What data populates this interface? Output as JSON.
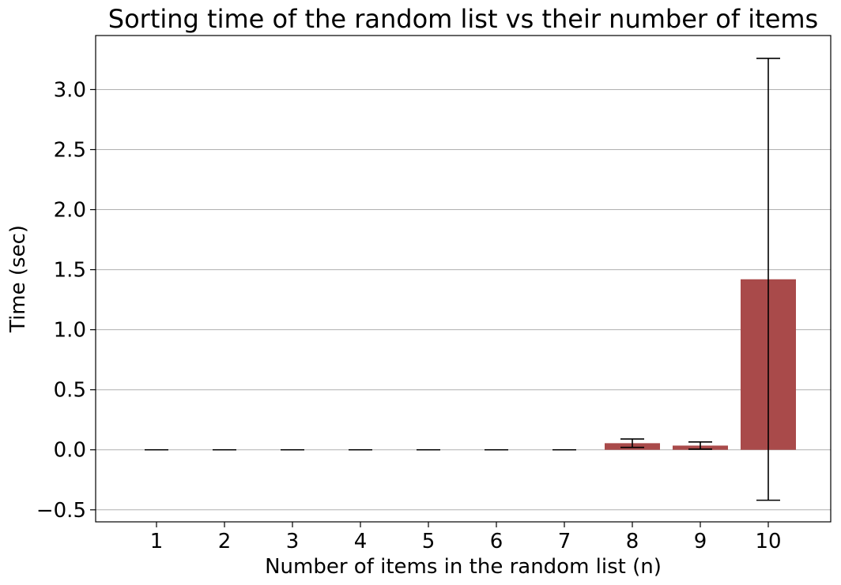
{
  "colors": {
    "bar": "#a94a4a",
    "error_bar": "#000000",
    "grid": "#b0b0b0"
  },
  "chart_data": {
    "type": "bar",
    "title": "Sorting time of the random list vs their number of items",
    "xlabel": "Number of items in the random list (n)",
    "ylabel": "Time (sec)",
    "categories": [
      "1",
      "2",
      "3",
      "4",
      "5",
      "6",
      "7",
      "8",
      "9",
      "10"
    ],
    "values": [
      0.0,
      0.0,
      0.0,
      0.0,
      0.0,
      0.0,
      0.0,
      0.055,
      0.035,
      1.42
    ],
    "error": [
      0.0,
      0.0,
      0.0,
      0.0,
      0.0,
      0.0,
      0.0,
      0.035,
      0.03,
      1.84
    ],
    "ylim": [
      -0.6,
      3.45
    ],
    "yticks": [
      -0.5,
      0.0,
      0.5,
      1.0,
      1.5,
      2.0,
      2.5,
      3.0
    ],
    "ytick_labels": [
      "−0.5",
      "0.0",
      "0.5",
      "1.0",
      "1.5",
      "2.0",
      "2.5",
      "3.0"
    ],
    "grid": "y-axis only",
    "legend": "none"
  }
}
